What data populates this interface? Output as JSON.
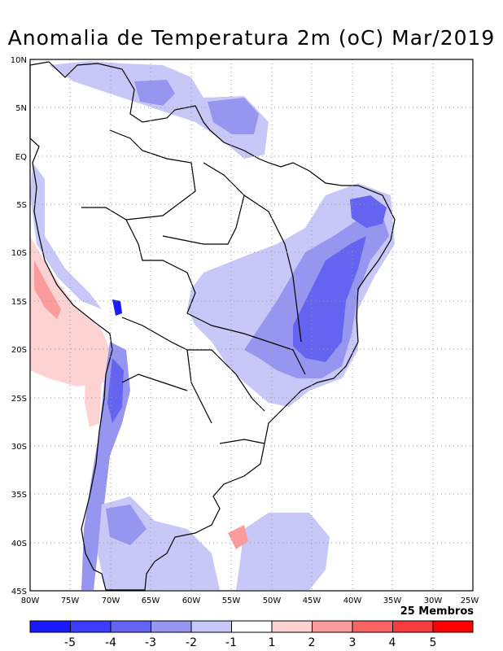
{
  "title": "Anomalia de Temperatura 2m (oC) Mar/2019",
  "members_label": "25 Membros",
  "lat_ticks": [
    "10N",
    "5N",
    "EQ",
    "5S",
    "10S",
    "15S",
    "20S",
    "25S",
    "30S",
    "35S",
    "40S",
    "45S"
  ],
  "lon_ticks": [
    "80W",
    "75W",
    "70W",
    "65W",
    "60W",
    "55W",
    "50W",
    "45W",
    "40W",
    "35W",
    "30W",
    "25W"
  ],
  "colorbar": {
    "labels": [
      "-5",
      "-4",
      "-3",
      "-2",
      "-1",
      "1",
      "2",
      "3",
      "4",
      "5"
    ],
    "colors": [
      "#1a1aff",
      "#3c3cff",
      "#6464f0",
      "#9696f0",
      "#c8c8f8",
      "#ffffff",
      "#fcd2d2",
      "#fa9c9c",
      "#f86464",
      "#f63c3c",
      "#ff0000"
    ]
  },
  "anomaly_levels": {
    "cool_light": "#c8c8f8",
    "cool_mid": "#9696f0",
    "cool_strong": "#6464f0",
    "cool_core": "#3c3cff",
    "warm_light": "#fcd2d2",
    "warm_mid": "#fa9c9c"
  }
}
